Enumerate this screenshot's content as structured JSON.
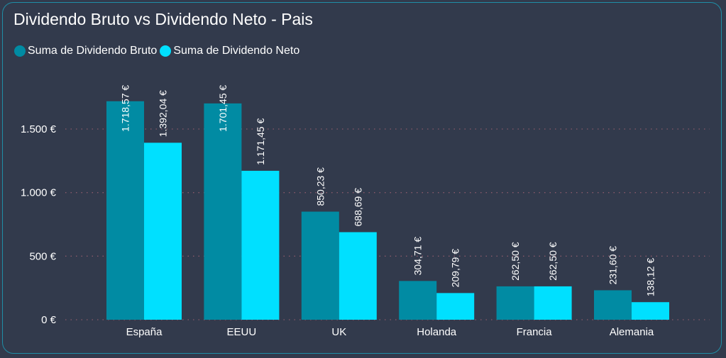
{
  "chart_data": {
    "type": "bar",
    "title": "Dividendo Bruto vs Dividendo Neto - Pais",
    "categories": [
      "España",
      "EEUU",
      "UK",
      "Holanda",
      "Francia",
      "Alemania"
    ],
    "series": [
      {
        "name": "Suma de Dividendo Bruto",
        "color": "#018ba3",
        "values": [
          1718.57,
          1701.45,
          850.23,
          304.71,
          262.5,
          231.6
        ],
        "labels": [
          "1.718,57 €",
          "1.701,45 €",
          "850,23 €",
          "304,71 €",
          "262,50 €",
          "231,60 €"
        ]
      },
      {
        "name": "Suma de Dividendo Neto",
        "color": "#00e0ff",
        "values": [
          1392.04,
          1171.45,
          688.69,
          209.79,
          262.5,
          138.12
        ],
        "labels": [
          "1.392,04 €",
          "1.171,45 €",
          "688,69 €",
          "209,79 €",
          "262,50 €",
          "138,12 €"
        ]
      }
    ],
    "y_ticks": [
      0,
      500,
      1000,
      1500
    ],
    "y_tick_labels": [
      "0 €",
      "500 €",
      "1.000 €",
      "1.500 €"
    ],
    "xlabel": "",
    "ylabel": "",
    "ylim": [
      0,
      1500
    ],
    "grid": true,
    "legend_position": "top-left"
  }
}
